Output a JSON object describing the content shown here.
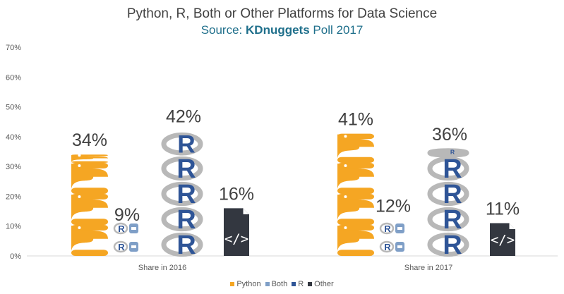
{
  "title": "Python, R, Both or Other Platforms for Data Science",
  "subtitle_prefix": "Source:",
  "subtitle_brand": "KDnuggets",
  "subtitle_suffix": "Poll 2017",
  "colors": {
    "python": "#f5a623",
    "both": "#7f9fc7",
    "r": "#2f5597",
    "other": "#333740",
    "grid": "#d9d9d9",
    "r_ring": "#b8b8b8"
  },
  "chart_data": {
    "type": "bar",
    "title": "Python, R, Both or Other Platforms for Data Science",
    "categories": [
      "Share in 2016",
      "Share in 2017"
    ],
    "series": [
      {
        "name": "Python",
        "values": [
          34,
          41
        ]
      },
      {
        "name": "Both",
        "values": [
          9,
          12
        ]
      },
      {
        "name": "R",
        "values": [
          42,
          36
        ]
      },
      {
        "name": "Other",
        "values": [
          16,
          11
        ]
      }
    ],
    "data_labels": [
      [
        "34%",
        "9%",
        "42%",
        "16%"
      ],
      [
        "41%",
        "12%",
        "36%",
        "11%"
      ]
    ],
    "y_ticks": [
      "0%",
      "10%",
      "20%",
      "30%",
      "40%",
      "50%",
      "60%",
      "70%"
    ],
    "ylim": [
      0,
      70
    ],
    "xlabel": "",
    "ylabel": "",
    "legend_position": "bottom"
  }
}
